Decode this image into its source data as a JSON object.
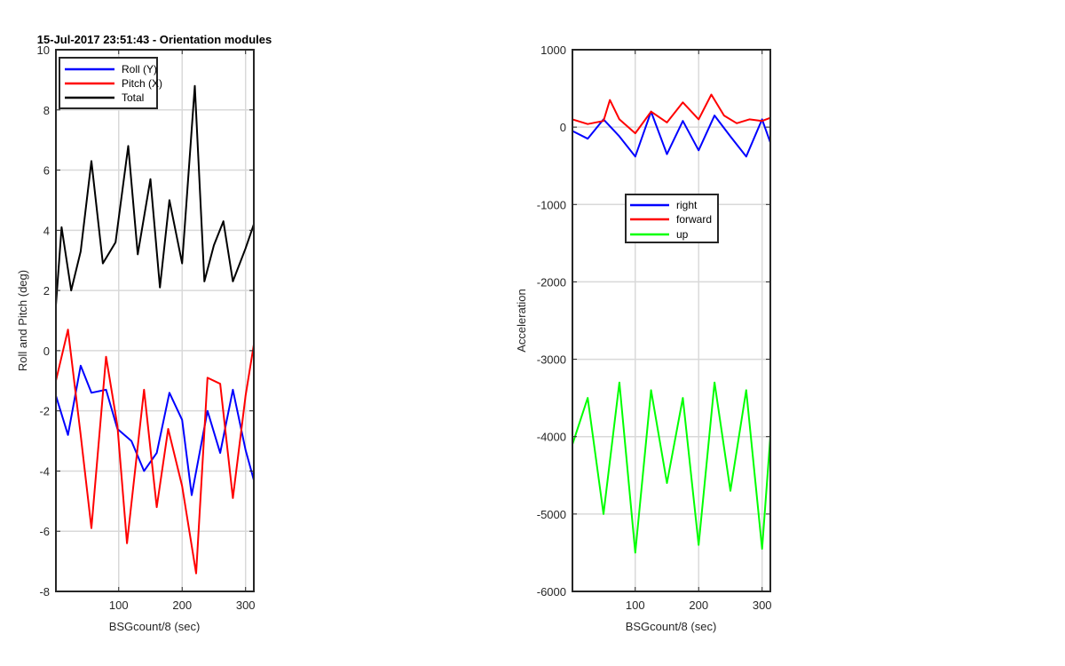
{
  "figure": {
    "title": "15-Jul-2017 23:51:43 - Orientation modules"
  },
  "chart_data": [
    {
      "type": "line",
      "title": "15-Jul-2017 23:51:43 - Orientation modules",
      "xlabel": "BSGcount/8 (sec)",
      "ylabel": "Roll and Pitch (deg)",
      "xlim": [
        1,
        313
      ],
      "ylim": [
        -8,
        10
      ],
      "xticks": [
        100,
        200,
        300
      ],
      "yticks": [
        -8,
        -6,
        -4,
        -2,
        0,
        2,
        4,
        6,
        8,
        10
      ],
      "grid": true,
      "legend": "top-left",
      "series": [
        {
          "name": "Roll (Y)",
          "color": "#0000ff",
          "x": [
            1,
            20,
            40,
            57,
            80,
            98,
            120,
            140,
            160,
            180,
            200,
            215,
            240,
            260,
            280,
            300,
            313
          ],
          "y": [
            -1.5,
            -2.8,
            -0.5,
            -1.4,
            -1.3,
            -2.6,
            -3.0,
            -4.0,
            -3.4,
            -1.4,
            -2.3,
            -4.8,
            -2.0,
            -3.4,
            -1.3,
            -3.3,
            -4.3
          ]
        },
        {
          "name": "Pitch (X)",
          "color": "#ff0000",
          "x": [
            1,
            20,
            40,
            57,
            80,
            98,
            113,
            140,
            160,
            178,
            200,
            222,
            240,
            260,
            280,
            300,
            313
          ],
          "y": [
            -1.0,
            0.7,
            -2.8,
            -5.9,
            -0.2,
            -2.5,
            -6.4,
            -1.3,
            -5.2,
            -2.6,
            -4.5,
            -7.4,
            -0.9,
            -1.1,
            -4.9,
            -1.5,
            0.2
          ]
        },
        {
          "name": "Total",
          "color": "#000000",
          "x": [
            1,
            10,
            25,
            40,
            57,
            75,
            95,
            115,
            130,
            150,
            165,
            180,
            200,
            220,
            235,
            250,
            265,
            280,
            300,
            313
          ],
          "y": [
            1.5,
            4.1,
            2.0,
            3.3,
            6.3,
            2.9,
            3.6,
            6.8,
            3.2,
            5.7,
            2.1,
            5.0,
            2.9,
            8.8,
            2.3,
            3.5,
            4.3,
            2.3,
            3.4,
            4.2
          ]
        }
      ]
    },
    {
      "type": "line",
      "title": "",
      "xlabel": "BSGcount/8 (sec)",
      "ylabel": "Acceleration",
      "xlim": [
        1,
        313
      ],
      "ylim": [
        -6000,
        1000
      ],
      "xticks": [
        100,
        200,
        300
      ],
      "yticks": [
        -6000,
        -5000,
        -4000,
        -3000,
        -2000,
        -1000,
        0,
        1000
      ],
      "grid": true,
      "legend": "center",
      "series": [
        {
          "name": "right",
          "color": "#0000ff",
          "x": [
            1,
            25,
            50,
            75,
            100,
            125,
            150,
            175,
            200,
            225,
            250,
            275,
            300,
            313
          ],
          "y": [
            -50,
            -150,
            100,
            -120,
            -380,
            200,
            -350,
            80,
            -300,
            150,
            -120,
            -380,
            100,
            -200
          ]
        },
        {
          "name": "forward",
          "color": "#ff0000",
          "x": [
            1,
            25,
            50,
            60,
            75,
            100,
            125,
            150,
            175,
            200,
            220,
            240,
            260,
            280,
            300,
            313
          ],
          "y": [
            100,
            40,
            80,
            350,
            100,
            -80,
            200,
            60,
            320,
            100,
            420,
            150,
            50,
            100,
            80,
            120
          ]
        },
        {
          "name": "up",
          "color": "#00ff00",
          "x": [
            1,
            25,
            50,
            75,
            100,
            125,
            150,
            175,
            200,
            225,
            250,
            275,
            300,
            313
          ],
          "y": [
            -4100,
            -3500,
            -5000,
            -3300,
            -5500,
            -3400,
            -4600,
            -3500,
            -5400,
            -3300,
            -4700,
            -3400,
            -5450,
            -4000
          ]
        }
      ]
    }
  ]
}
